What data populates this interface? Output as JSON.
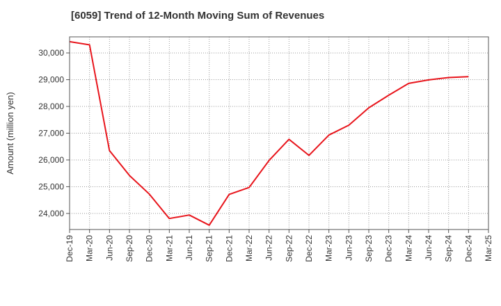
{
  "chart_data": {
    "type": "line",
    "title": "[6059]  Trend of 12-Month Moving Sum of Revenues",
    "xlabel": "",
    "ylabel": "Amount (million yen)",
    "categories": [
      "Dec-19",
      "Mar-20",
      "Jun-20",
      "Sep-20",
      "Dec-20",
      "Mar-21",
      "Jun-21",
      "Sep-21",
      "Dec-21",
      "Mar-22",
      "Jun-22",
      "Sep-22",
      "Dec-22",
      "Mar-23",
      "Jun-23",
      "Sep-23",
      "Dec-23",
      "Mar-24",
      "Jun-24",
      "Sep-24",
      "Dec-24",
      "Mar-25"
    ],
    "series": [
      {
        "color": "#e8141b",
        "values": [
          30420,
          30300,
          26350,
          25420,
          24720,
          23810,
          23940,
          23560,
          24710,
          24970,
          25980,
          26770,
          26170,
          26930,
          27300,
          27950,
          28420,
          28860,
          28990,
          29080,
          29110,
          null
        ]
      }
    ],
    "ylim": [
      23400,
      30600
    ],
    "yticks": [
      24000,
      25000,
      26000,
      27000,
      28000,
      29000,
      30000
    ],
    "ytick_labels": [
      "24,000",
      "25,000",
      "26,000",
      "27,000",
      "28,000",
      "29,000",
      "30,000"
    ],
    "grid": true
  }
}
